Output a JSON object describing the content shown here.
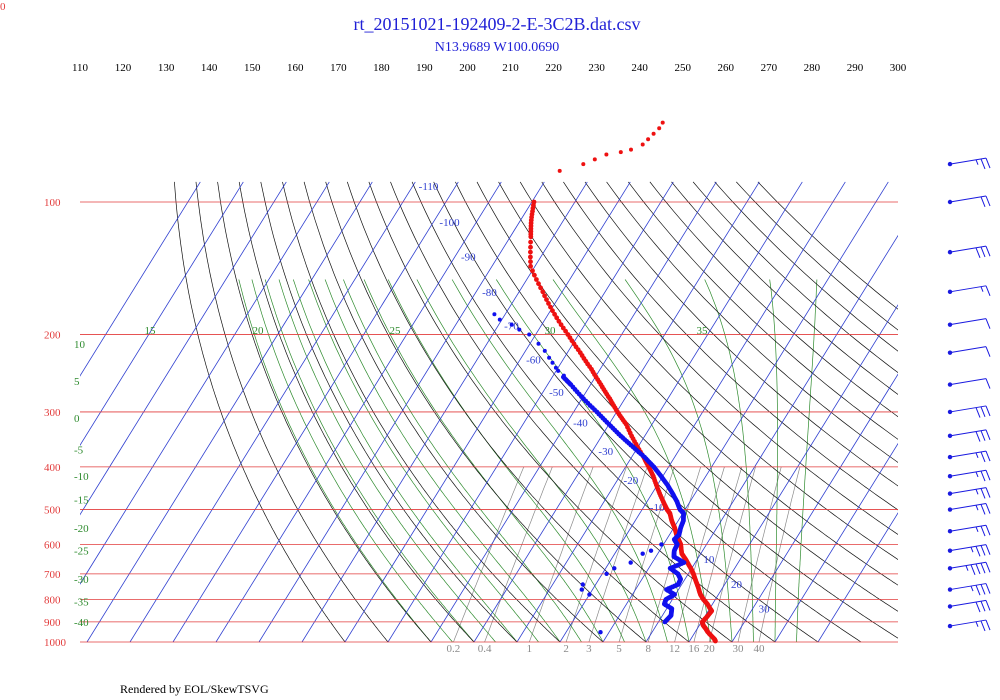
{
  "header": {
    "title": "rt_20151021-192409-2-E-3C2B.dat.csv",
    "location": "N13.9689 W100.0690",
    "corner_mark": "0"
  },
  "footer": {
    "rendered_by": "Rendered by EOL/SkewTSVG"
  },
  "colors": {
    "isobar": "#e23b3b",
    "isotherm": "#2f3fd0",
    "dry_adiabat": "#111111",
    "moist_adiabat": "#2e8b2e",
    "mixing_ratio": "#8a8a8a",
    "temperature": "#ee1111",
    "dewpoint": "#1010ee",
    "wind_barb": "#1a1ae0"
  },
  "chart_data": {
    "type": "scatter",
    "plot": "skew-t log-p",
    "title": "rt_20151021-192409-2-E-3C2B.dat.csv",
    "subtitle": "N13.9689 W100.0690",
    "pressure_levels": [
      100,
      200,
      300,
      400,
      500,
      600,
      700,
      800,
      900,
      1000
    ],
    "pressure_range": [
      90,
      1000
    ],
    "top_potential_temperature_ticks": [
      110,
      120,
      130,
      140,
      150,
      160,
      170,
      180,
      190,
      200,
      210,
      220,
      230,
      240,
      250,
      260,
      270,
      280,
      290,
      300
    ],
    "isotherm_labels": [
      -110,
      -100,
      -90,
      -80,
      -70,
      -60,
      -50,
      -40,
      -30,
      -20,
      -10,
      0,
      10,
      20,
      30
    ],
    "dry_adiabat_labels": [
      110,
      100,
      90,
      80,
      70,
      60,
      50,
      40,
      30,
      20,
      10,
      0,
      -10,
      -20,
      -30,
      -40
    ],
    "moist_adiabat_labels_top": [
      15,
      20,
      25,
      30,
      35
    ],
    "moist_adiabat_labels_left": [
      10,
      5,
      0,
      -5,
      -10,
      -15,
      -20,
      -25,
      -30,
      -35,
      -40
    ],
    "mixing_ratio_labels": [
      "0.2",
      "0.4",
      "1",
      "2",
      "3",
      "5",
      "8",
      "12",
      "16",
      "20",
      "30",
      "40"
    ],
    "series": [
      {
        "name": "Temperature",
        "points": [
          [
            995,
            26.0
          ],
          [
            985,
            25.5
          ],
          [
            950,
            23.0
          ],
          [
            930,
            21.8
          ],
          [
            915,
            20.8
          ],
          [
            900,
            20.2
          ],
          [
            880,
            20.5
          ],
          [
            850,
            20.8
          ],
          [
            820,
            18.8
          ],
          [
            800,
            17.2
          ],
          [
            780,
            15.8
          ],
          [
            750,
            14.2
          ],
          [
            720,
            12.4
          ],
          [
            700,
            11.2
          ],
          [
            680,
            9.8
          ],
          [
            650,
            7.4
          ],
          [
            630,
            5.6
          ],
          [
            600,
            4.0
          ],
          [
            585,
            2.8
          ],
          [
            570,
            1.6
          ],
          [
            550,
            0.2
          ],
          [
            530,
            -1.5
          ],
          [
            510,
            -3.0
          ],
          [
            500,
            -4.2
          ],
          [
            480,
            -6.2
          ],
          [
            450,
            -9.2
          ],
          [
            420,
            -12.2
          ],
          [
            400,
            -14.6
          ],
          [
            380,
            -17.2
          ],
          [
            350,
            -21.6
          ],
          [
            320,
            -26.0
          ],
          [
            300,
            -29.8
          ],
          [
            280,
            -33.5
          ],
          [
            260,
            -37.6
          ],
          [
            240,
            -42.0
          ],
          [
            220,
            -47.0
          ],
          [
            200,
            -52.5
          ],
          [
            180,
            -58.5
          ],
          [
            160,
            -64.5
          ],
          [
            140,
            -71.0
          ],
          [
            120,
            -75.2
          ],
          [
            110,
            -77.5
          ],
          [
            100,
            -79.5
          ]
        ],
        "upper_scatter": [
          [
            85,
            -78.0
          ],
          [
            82,
            -73.5
          ],
          [
            80,
            -71.5
          ],
          [
            78,
            -69.5
          ],
          [
            77,
            -66.5
          ],
          [
            76,
            -64.5
          ],
          [
            74,
            -62.5
          ],
          [
            72,
            -62.0
          ],
          [
            70,
            -61.5
          ],
          [
            68,
            -61.0
          ],
          [
            66,
            -61.0
          ]
        ]
      },
      {
        "name": "Dewpoint",
        "points": [
          [
            900,
            11.5
          ],
          [
            870,
            12.0
          ],
          [
            840,
            11.2
          ],
          [
            820,
            8.8
          ],
          [
            800,
            8.5
          ],
          [
            780,
            9.8
          ],
          [
            760,
            7.2
          ],
          [
            740,
            9.2
          ],
          [
            720,
            9.0
          ],
          [
            700,
            7.6
          ],
          [
            680,
            5.0
          ],
          [
            660,
            7.4
          ],
          [
            640,
            4.2
          ],
          [
            620,
            3.4
          ],
          [
            600,
            3.2
          ],
          [
            585,
            1.8
          ],
          [
            570,
            2.2
          ],
          [
            550,
            1.6
          ],
          [
            530,
            1.2
          ],
          [
            510,
            0.2
          ],
          [
            500,
            -1.2
          ],
          [
            480,
            -3.0
          ],
          [
            460,
            -5.2
          ],
          [
            440,
            -7.6
          ],
          [
            420,
            -10.4
          ],
          [
            400,
            -13.4
          ],
          [
            380,
            -17.0
          ],
          [
            360,
            -21.2
          ],
          [
            340,
            -25.6
          ],
          [
            320,
            -30.0
          ],
          [
            300,
            -34.6
          ],
          [
            280,
            -39.6
          ],
          [
            260,
            -44.6
          ],
          [
            250,
            -47.4
          ]
        ],
        "extra_scatter": [
          [
            950,
            -2.0
          ],
          [
            780,
            -10.0
          ],
          [
            760,
            -12.5
          ],
          [
            740,
            -13.0
          ],
          [
            700,
            -9.0
          ],
          [
            680,
            -8.0
          ],
          [
            660,
            -5.0
          ],
          [
            630,
            -3.5
          ],
          [
            620,
            -2.0
          ],
          [
            600,
            -0.5
          ]
        ],
        "upper_scatter": [
          [
            248,
            -47.5
          ],
          [
            242,
            -49.5
          ],
          [
            238,
            -50.5
          ],
          [
            232,
            -52.0
          ],
          [
            226,
            -53.5
          ],
          [
            218,
            -55.5
          ],
          [
            210,
            -58.0
          ],
          [
            200,
            -61.5
          ],
          [
            195,
            -64.5
          ],
          [
            190,
            -67.0
          ],
          [
            185,
            -70.5
          ],
          [
            180,
            -72.5
          ]
        ]
      }
    ],
    "wind_barbs": [
      {
        "p": 82,
        "speed": 25
      },
      {
        "p": 100,
        "speed": 20
      },
      {
        "p": 130,
        "speed": 30
      },
      {
        "p": 160,
        "speed": 15
      },
      {
        "p": 190,
        "speed": 10
      },
      {
        "p": 220,
        "speed": 10
      },
      {
        "p": 260,
        "speed": 10
      },
      {
        "p": 300,
        "speed": 30
      },
      {
        "p": 340,
        "speed": 30
      },
      {
        "p": 380,
        "speed": 25
      },
      {
        "p": 420,
        "speed": 25
      },
      {
        "p": 460,
        "speed": 25
      },
      {
        "p": 500,
        "speed": 25
      },
      {
        "p": 560,
        "speed": 25
      },
      {
        "p": 620,
        "speed": 35
      },
      {
        "p": 680,
        "speed": 45
      },
      {
        "p": 760,
        "speed": 35
      },
      {
        "p": 830,
        "speed": 30
      },
      {
        "p": 920,
        "speed": 25
      }
    ]
  }
}
